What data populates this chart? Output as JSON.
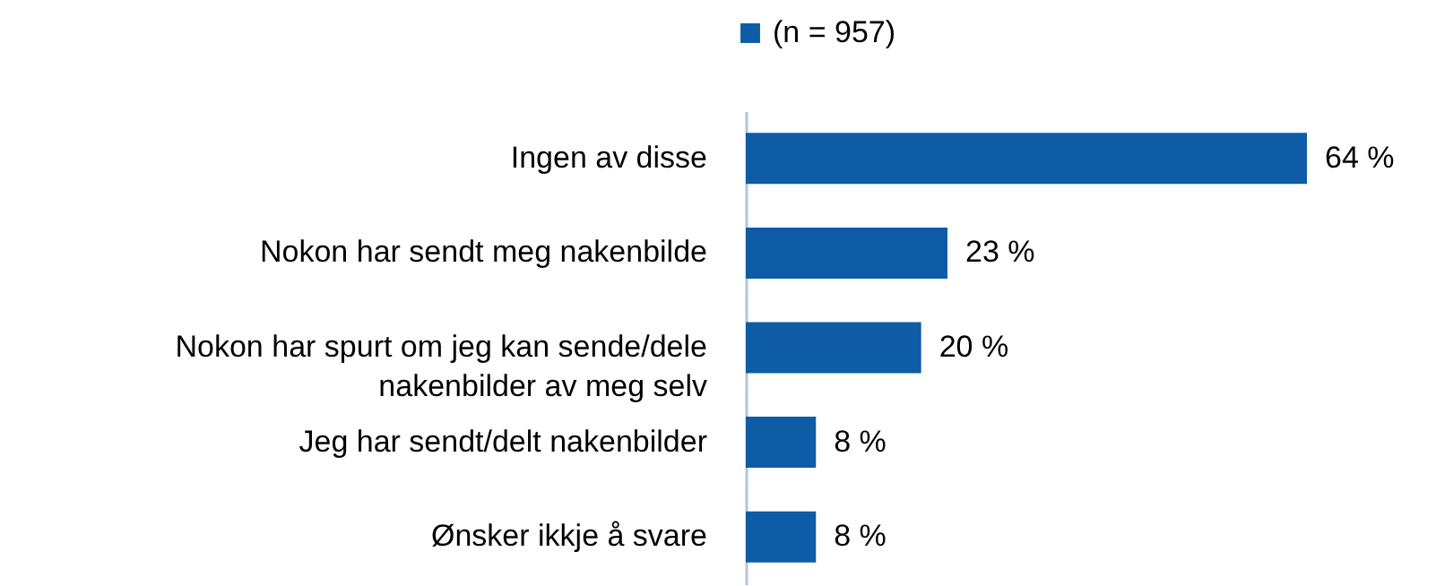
{
  "chart_data": {
    "type": "bar",
    "orientation": "horizontal",
    "categories": [
      "Ingen av disse",
      "Nokon har sendt meg nakenbilde",
      "Nokon har spurt om jeg kan sende/dele nakenbilder av meg selv",
      "Jeg har sendt/delt nakenbilder",
      "Ønsker ikkje å svare"
    ],
    "series": [
      {
        "name": "(n = 957)",
        "color": "#0f5ca6",
        "values": [
          64,
          23,
          20,
          8,
          8
        ],
        "value_labels": [
          "64 %",
          "23 %",
          "20 %",
          "8 %",
          "8 %"
        ]
      }
    ],
    "legend": "top",
    "grid": false
  }
}
